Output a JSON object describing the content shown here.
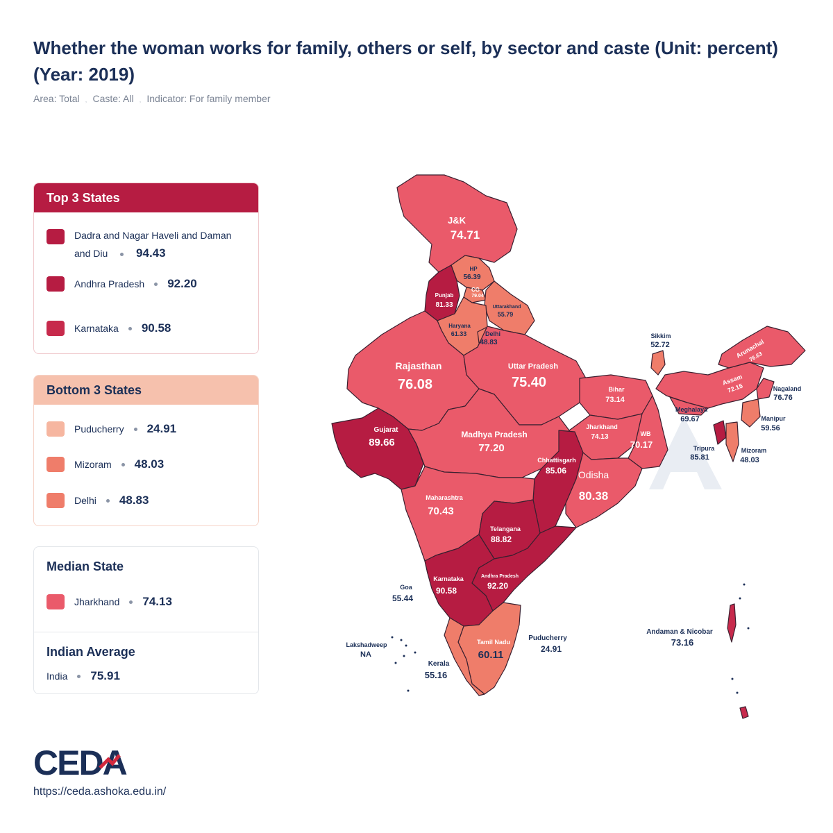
{
  "title": "Whether the woman works for family, others or self, by sector and caste (Unit: percent) (Year: 2019)",
  "filters": {
    "area": "Area: Total",
    "caste": "Caste: All",
    "indicator": "Indicator: For family member"
  },
  "colors": {
    "darkest": "#b61c42",
    "dark": "#c72a4c",
    "mid": "#ea5a6a",
    "light": "#ef7d6a",
    "lightest": "#f6b6a0",
    "text": "#1b2f57"
  },
  "top3": {
    "heading": "Top 3 States",
    "items": [
      {
        "name": "Dadra and Nagar Haveli and Daman and Diu",
        "value": "94.43"
      },
      {
        "name": "Andhra Pradesh",
        "value": "92.20"
      },
      {
        "name": "Karnataka",
        "value": "90.58"
      }
    ]
  },
  "bottom3": {
    "heading": "Bottom 3 States",
    "items": [
      {
        "name": "Puducherry",
        "value": "24.91"
      },
      {
        "name": "Mizoram",
        "value": "48.03"
      },
      {
        "name": "Delhi",
        "value": "48.83"
      }
    ]
  },
  "median": {
    "heading": "Median State",
    "name": "Jharkhand",
    "value": "74.13"
  },
  "average": {
    "heading": "Indian Average",
    "name": "India",
    "value": "75.91"
  },
  "map_labels": {
    "jk": {
      "name": "J&K",
      "value": "74.71"
    },
    "hp": {
      "name": "HP",
      "value": "56.39"
    },
    "punjab": {
      "name": "Punjab",
      "value": "81.33"
    },
    "cg": {
      "name": "CG",
      "value": "79.04"
    },
    "uttarakhand": {
      "name": "Uttarakhand",
      "value": "55.79"
    },
    "haryana": {
      "name": "Haryana",
      "value": "61.33"
    },
    "delhi": {
      "name": "Delhi",
      "value": "48.83"
    },
    "rajasthan": {
      "name": "Rajasthan",
      "value": "76.08"
    },
    "up": {
      "name": "Uttar Pradesh",
      "value": "75.40"
    },
    "bihar": {
      "name": "Bihar",
      "value": "73.14"
    },
    "sikkim": {
      "name": "Sikkim",
      "value": "52.72"
    },
    "arunachal": {
      "name": "Arunachal",
      "value": "76.63"
    },
    "assam": {
      "name": "Assam",
      "value": "72.15"
    },
    "nagaland": {
      "name": "Nagaland",
      "value": "76.76"
    },
    "meghalaya": {
      "name": "Meghalaya",
      "value": "69.67"
    },
    "manipur": {
      "name": "Manipur",
      "value": "59.56"
    },
    "tripura": {
      "name": "Tripura",
      "value": "85.81"
    },
    "mizoram": {
      "name": "Mizoram",
      "value": "48.03"
    },
    "gujarat": {
      "name": "Gujarat",
      "value": "89.66"
    },
    "mp": {
      "name": "Madhya Pradesh",
      "value": "77.20"
    },
    "jharkhand": {
      "name": "Jharkhand",
      "value": "74.13"
    },
    "wb": {
      "name": "WB",
      "value": "70.17"
    },
    "chhattisgarh": {
      "name": "Chhattisgarh",
      "value": "85.06"
    },
    "odisha": {
      "name": "Odisha",
      "value": "80.38"
    },
    "maharashtra": {
      "name": "Maharashtra",
      "value": "70.43"
    },
    "telangana": {
      "name": "Telangana",
      "value": "88.82"
    },
    "goa": {
      "name": "Goa",
      "value": "55.44"
    },
    "karnataka": {
      "name": "Karnataka",
      "value": "90.58"
    },
    "ap": {
      "name": "Andhra Pradesh",
      "value": "92.20"
    },
    "lakshadweep": {
      "name": "Lakshadweep",
      "value": "NA"
    },
    "tamilnadu": {
      "name": "Tamil Nadu",
      "value": "60.11"
    },
    "puducherry": {
      "name": "Puducherry",
      "value": "24.91"
    },
    "kerala": {
      "name": "Kerala",
      "value": "55.16"
    },
    "andaman": {
      "name": "Andaman & Nicobar",
      "value": "73.16"
    }
  },
  "logo_text": "CEDA",
  "url": "https://ceda.ashoka.edu.in/"
}
